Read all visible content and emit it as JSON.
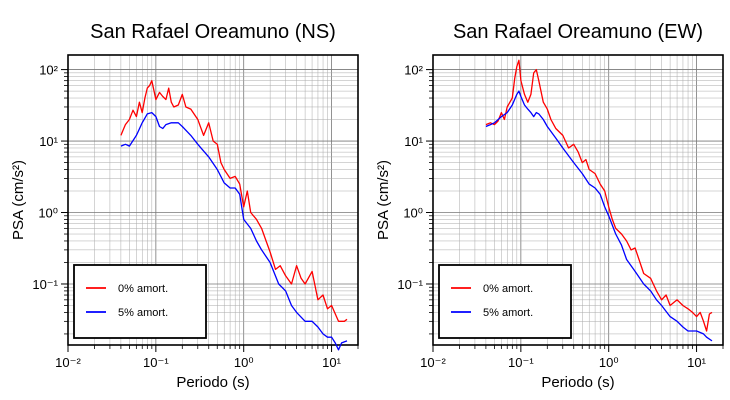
{
  "chart_data": [
    {
      "type": "line",
      "title": "San Rafael Oreamuno (NS)",
      "xlabel": "Periodo (s)",
      "ylabel": "PSA (cm/s²)",
      "xscale": "log",
      "yscale": "log",
      "xlim": [
        0.01,
        20
      ],
      "ylim": [
        0.014,
        160
      ],
      "grid": true,
      "legend_position": "bottom-left",
      "x_tick_labels": [
        "10⁻²",
        "10⁻¹",
        "10⁰",
        "10¹"
      ],
      "y_tick_labels": [
        "10⁻¹",
        "10⁰",
        "10¹",
        "10²"
      ],
      "series": [
        {
          "name": "0% amort.",
          "color": "#ff0000",
          "points": [
            [
              0.04,
              12
            ],
            [
              0.045,
              17
            ],
            [
              0.05,
              20
            ],
            [
              0.055,
              27
            ],
            [
              0.06,
              22
            ],
            [
              0.065,
              35
            ],
            [
              0.07,
              25
            ],
            [
              0.075,
              40
            ],
            [
              0.08,
              55
            ],
            [
              0.085,
              60
            ],
            [
              0.09,
              70
            ],
            [
              0.1,
              38
            ],
            [
              0.11,
              48
            ],
            [
              0.12,
              42
            ],
            [
              0.13,
              38
            ],
            [
              0.14,
              55
            ],
            [
              0.15,
              35
            ],
            [
              0.16,
              30
            ],
            [
              0.18,
              32
            ],
            [
              0.2,
              45
            ],
            [
              0.22,
              30
            ],
            [
              0.25,
              28
            ],
            [
              0.3,
              20
            ],
            [
              0.35,
              12
            ],
            [
              0.4,
              18
            ],
            [
              0.45,
              10
            ],
            [
              0.5,
              9
            ],
            [
              0.55,
              5
            ],
            [
              0.6,
              4
            ],
            [
              0.7,
              3
            ],
            [
              0.8,
              3.2
            ],
            [
              0.9,
              2.5
            ],
            [
              1.0,
              1.2
            ],
            [
              1.1,
              2.0
            ],
            [
              1.2,
              1.0
            ],
            [
              1.4,
              0.8
            ],
            [
              1.6,
              0.6
            ],
            [
              1.8,
              0.4
            ],
            [
              2.0,
              0.28
            ],
            [
              2.3,
              0.16
            ],
            [
              2.6,
              0.18
            ],
            [
              3.0,
              0.13
            ],
            [
              3.5,
              0.1
            ],
            [
              4.0,
              0.18
            ],
            [
              4.5,
              0.12
            ],
            [
              5.0,
              0.1
            ],
            [
              6.0,
              0.15
            ],
            [
              7.0,
              0.06
            ],
            [
              8.0,
              0.07
            ],
            [
              9.0,
              0.045
            ],
            [
              10.0,
              0.05
            ],
            [
              12.0,
              0.03
            ],
            [
              14.0,
              0.03
            ],
            [
              15.0,
              0.032
            ]
          ]
        },
        {
          "name": "5% amort.",
          "color": "#0000ff",
          "points": [
            [
              0.04,
              8.5
            ],
            [
              0.045,
              9
            ],
            [
              0.05,
              8.5
            ],
            [
              0.06,
              12
            ],
            [
              0.07,
              18
            ],
            [
              0.08,
              24
            ],
            [
              0.09,
              25
            ],
            [
              0.1,
              22
            ],
            [
              0.11,
              16
            ],
            [
              0.12,
              15
            ],
            [
              0.13,
              17
            ],
            [
              0.15,
              18
            ],
            [
              0.18,
              18
            ],
            [
              0.2,
              16
            ],
            [
              0.25,
              12
            ],
            [
              0.3,
              9
            ],
            [
              0.4,
              6
            ],
            [
              0.5,
              4
            ],
            [
              0.6,
              2.6
            ],
            [
              0.7,
              2.2
            ],
            [
              0.8,
              2.2
            ],
            [
              0.9,
              1.8
            ],
            [
              1.0,
              0.8
            ],
            [
              1.2,
              0.6
            ],
            [
              1.4,
              0.4
            ],
            [
              1.6,
              0.3
            ],
            [
              2.0,
              0.2
            ],
            [
              2.5,
              0.1
            ],
            [
              3.0,
              0.08
            ],
            [
              3.5,
              0.05
            ],
            [
              4.0,
              0.04
            ],
            [
              5.0,
              0.03
            ],
            [
              6.0,
              0.03
            ],
            [
              7.0,
              0.025
            ],
            [
              8.0,
              0.02
            ],
            [
              9.0,
              0.018
            ],
            [
              10.0,
              0.018
            ],
            [
              11.0,
              0.015
            ],
            [
              12.0,
              0.012
            ],
            [
              13.0,
              0.015
            ],
            [
              15.0,
              0.016
            ]
          ]
        }
      ]
    },
    {
      "type": "line",
      "title": "San Rafael Oreamuno (EW)",
      "xlabel": "Periodo (s)",
      "ylabel": "PSA (cm/s²)",
      "xscale": "log",
      "yscale": "log",
      "xlim": [
        0.01,
        20
      ],
      "ylim": [
        0.014,
        160
      ],
      "grid": true,
      "legend_position": "bottom-left",
      "x_tick_labels": [
        "10⁻²",
        "10⁻¹",
        "10⁰",
        "10¹"
      ],
      "y_tick_labels": [
        "10⁻¹",
        "10⁰",
        "10¹",
        "10²"
      ],
      "series": [
        {
          "name": "0% amort.",
          "color": "#ff0000",
          "points": [
            [
              0.04,
              17
            ],
            [
              0.045,
              18
            ],
            [
              0.05,
              17
            ],
            [
              0.055,
              19
            ],
            [
              0.06,
              25
            ],
            [
              0.065,
              20
            ],
            [
              0.07,
              30
            ],
            [
              0.075,
              35
            ],
            [
              0.08,
              40
            ],
            [
              0.085,
              75
            ],
            [
              0.09,
              110
            ],
            [
              0.095,
              135
            ],
            [
              0.1,
              70
            ],
            [
              0.11,
              45
            ],
            [
              0.12,
              35
            ],
            [
              0.13,
              45
            ],
            [
              0.14,
              90
            ],
            [
              0.15,
              100
            ],
            [
              0.16,
              70
            ],
            [
              0.18,
              35
            ],
            [
              0.2,
              28
            ],
            [
              0.22,
              20
            ],
            [
              0.25,
              15
            ],
            [
              0.3,
              12
            ],
            [
              0.35,
              8
            ],
            [
              0.4,
              9
            ],
            [
              0.45,
              7
            ],
            [
              0.5,
              5
            ],
            [
              0.55,
              5.5
            ],
            [
              0.6,
              4
            ],
            [
              0.7,
              3.5
            ],
            [
              0.8,
              2.5
            ],
            [
              0.9,
              2
            ],
            [
              1.0,
              1.2
            ],
            [
              1.1,
              0.8
            ],
            [
              1.2,
              0.6
            ],
            [
              1.4,
              0.5
            ],
            [
              1.6,
              0.4
            ],
            [
              1.8,
              0.3
            ],
            [
              2.0,
              0.32
            ],
            [
              2.5,
              0.14
            ],
            [
              3.0,
              0.12
            ],
            [
              3.5,
              0.08
            ],
            [
              4.0,
              0.06
            ],
            [
              4.5,
              0.07
            ],
            [
              5.0,
              0.05
            ],
            [
              6.0,
              0.06
            ],
            [
              7.0,
              0.05
            ],
            [
              8.0,
              0.045
            ],
            [
              9.0,
              0.04
            ],
            [
              10.0,
              0.035
            ],
            [
              11.0,
              0.04
            ],
            [
              12.0,
              0.03
            ],
            [
              13.0,
              0.022
            ],
            [
              14.0,
              0.038
            ],
            [
              15.0,
              0.04
            ]
          ]
        },
        {
          "name": "5% amort.",
          "color": "#0000ff",
          "points": [
            [
              0.04,
              16
            ],
            [
              0.045,
              17
            ],
            [
              0.05,
              18
            ],
            [
              0.06,
              22
            ],
            [
              0.07,
              25
            ],
            [
              0.08,
              32
            ],
            [
              0.09,
              45
            ],
            [
              0.095,
              50
            ],
            [
              0.1,
              42
            ],
            [
              0.11,
              32
            ],
            [
              0.12,
              28
            ],
            [
              0.13,
              25
            ],
            [
              0.14,
              22
            ],
            [
              0.15,
              25
            ],
            [
              0.16,
              24
            ],
            [
              0.18,
              20
            ],
            [
              0.2,
              16
            ],
            [
              0.25,
              11
            ],
            [
              0.3,
              8
            ],
            [
              0.4,
              5
            ],
            [
              0.5,
              3.5
            ],
            [
              0.6,
              2.5
            ],
            [
              0.7,
              2.2
            ],
            [
              0.8,
              1.8
            ],
            [
              0.9,
              1.2
            ],
            [
              1.0,
              0.9
            ],
            [
              1.2,
              0.5
            ],
            [
              1.4,
              0.35
            ],
            [
              1.6,
              0.22
            ],
            [
              2.0,
              0.15
            ],
            [
              2.5,
              0.1
            ],
            [
              3.0,
              0.08
            ],
            [
              3.5,
              0.06
            ],
            [
              4.0,
              0.05
            ],
            [
              5.0,
              0.035
            ],
            [
              6.0,
              0.03
            ],
            [
              7.0,
              0.025
            ],
            [
              8.0,
              0.022
            ],
            [
              10.0,
              0.022
            ],
            [
              12.0,
              0.02
            ],
            [
              13.0,
              0.018
            ],
            [
              15.0,
              0.016
            ]
          ]
        }
      ]
    }
  ]
}
